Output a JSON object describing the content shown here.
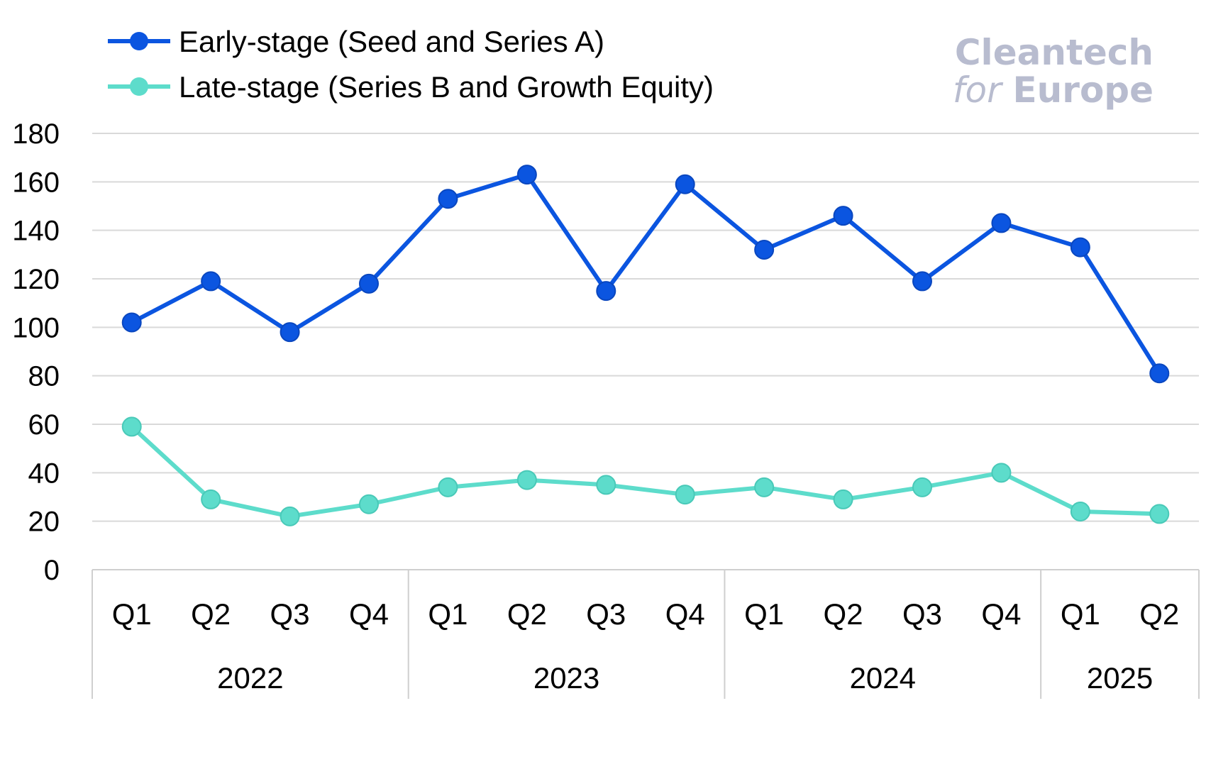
{
  "brand": {
    "line1": "Cleantech",
    "line2_for": "for",
    "line2_europe": "Europe"
  },
  "colors": {
    "early": "#0b55e0",
    "late": "#5ddccb",
    "grid": "#d9d9d9",
    "axis": "#cfcfcf",
    "brand": "#b8bccf"
  },
  "chart_data": {
    "type": "line",
    "categories": [
      "Q1",
      "Q2",
      "Q3",
      "Q4",
      "Q1",
      "Q2",
      "Q3",
      "Q4",
      "Q1",
      "Q2",
      "Q3",
      "Q4",
      "Q1",
      "Q2"
    ],
    "groups": [
      {
        "label": "2022",
        "count": 4
      },
      {
        "label": "2023",
        "count": 4
      },
      {
        "label": "2024",
        "count": 4
      },
      {
        "label": "2025",
        "count": 2
      }
    ],
    "series": [
      {
        "name": "Early-stage (Seed and Series A)",
        "color": "#0b55e0",
        "values": [
          102,
          119,
          98,
          118,
          153,
          163,
          115,
          159,
          132,
          146,
          119,
          143,
          133,
          81
        ]
      },
      {
        "name": "Late-stage (Series B and Growth Equity)",
        "color": "#5ddccb",
        "values": [
          59,
          29,
          22,
          27,
          34,
          37,
          35,
          31,
          34,
          29,
          34,
          40,
          24,
          23
        ]
      }
    ],
    "yticks": [
      0,
      20,
      40,
      60,
      80,
      100,
      120,
      140,
      160,
      180
    ],
    "ylim": [
      0,
      180
    ],
    "grid": true,
    "legend": "top-left"
  }
}
